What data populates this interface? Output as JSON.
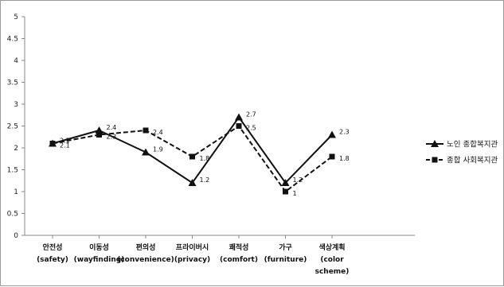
{
  "chart_data": {
    "type": "line",
    "title": "",
    "xlabel": "",
    "ylabel": "",
    "ylim": [
      0,
      5
    ],
    "yticks": [
      "0",
      "0.5",
      "1",
      "1.5",
      "2",
      "2.5",
      "3",
      "3.5",
      "4",
      "4.5",
      "5"
    ],
    "grid": false,
    "legend_position": "right",
    "categories": [
      [
        "안전성",
        "(safety)"
      ],
      [
        "이동성",
        "(wayfinding)"
      ],
      [
        "편의성",
        "(convenience)"
      ],
      [
        "프라이버시",
        "(privacy)"
      ],
      [
        "쾌적성",
        "(comfort)"
      ],
      [
        "가구",
        "(furniture)"
      ],
      [
        "색상계획",
        "(color",
        "scheme)"
      ]
    ],
    "series": [
      {
        "name": "노인 종합복지관",
        "values": [
          2.1,
          2.4,
          1.9,
          1.2,
          2.7,
          1.2,
          2.3
        ],
        "value_labels": [
          "2.1",
          "2.4",
          "1.9",
          "1.2",
          "2.7",
          "1.2",
          "2.3"
        ],
        "marker": "triangle",
        "line": "solid",
        "color": "#111111"
      },
      {
        "name": "종합 사회복지관",
        "values": [
          2.1,
          2.3,
          2.4,
          1.8,
          2.5,
          1.0,
          1.8
        ],
        "value_labels": [
          "2.1",
          "2.3",
          "2.4",
          "1.8",
          "2.5",
          "1",
          "1.8"
        ],
        "marker": "square",
        "line": "dashed",
        "color": "#111111"
      }
    ]
  }
}
